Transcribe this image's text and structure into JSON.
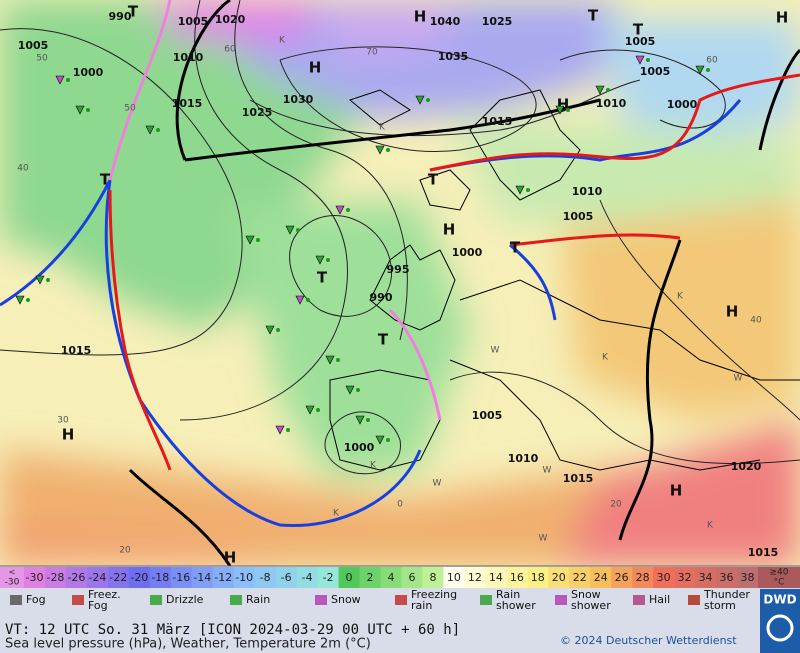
{
  "map": {
    "labels": [
      "990",
      "T",
      "1005",
      "1020",
      "H",
      "1040",
      "1025",
      "T",
      "T",
      "H",
      "1005",
      "1005",
      "1010",
      "1000",
      "H",
      "1035",
      "1005",
      "1030",
      "1015",
      "1025",
      "H",
      "1010",
      "1000",
      "1015",
      "T",
      "1010",
      "1005",
      "H",
      "1000",
      "T",
      "995",
      "990",
      "1015",
      "T",
      "H",
      "1005",
      "1010",
      "1000",
      "1020",
      "H",
      "1015",
      "H",
      "H",
      "1015",
      "T",
      "T"
    ],
    "temperature_labels": [
      "60",
      "70",
      "50",
      "50",
      "60",
      "40",
      "40",
      "30",
      "20",
      "20",
      "0",
      "W",
      "W",
      "W",
      "W",
      "W",
      "K",
      "K",
      "K",
      "K",
      "K",
      "K",
      "K"
    ]
  },
  "colorbar": {
    "below": [
      "<",
      "-30"
    ],
    "labels": [
      "-30",
      "-28",
      "-26",
      "-24",
      "-22",
      "-20",
      "-18",
      "-16",
      "-14",
      "-12",
      "-10",
      "-8",
      "-6",
      "-4",
      "-2",
      "0",
      "2",
      "4",
      "6",
      "8",
      "10",
      "12",
      "14",
      "16",
      "18",
      "20",
      "22",
      "24",
      "26",
      "28",
      "30",
      "32",
      "34",
      "36",
      "38"
    ],
    "above": [
      "≥40",
      "°C"
    ]
  },
  "legend": [
    "Fog",
    "Freez.\nFog",
    "Drizzle",
    "Rain",
    "Snow",
    "Freezing\nrain",
    "Rain\nshower",
    "Snow\nshower",
    "Hail",
    "Thunder\nstorm"
  ],
  "footer": {
    "line1": "VT: 12 UTC So.  31 März [ICON 2024-03-29  00 UTC + 60 h]",
    "line2": "Sea level pressure (hPa), Weather, Temperature 2m (°C)",
    "copyright": "© 2024 Deutscher Wetterdienst",
    "logo": "DWD"
  }
}
